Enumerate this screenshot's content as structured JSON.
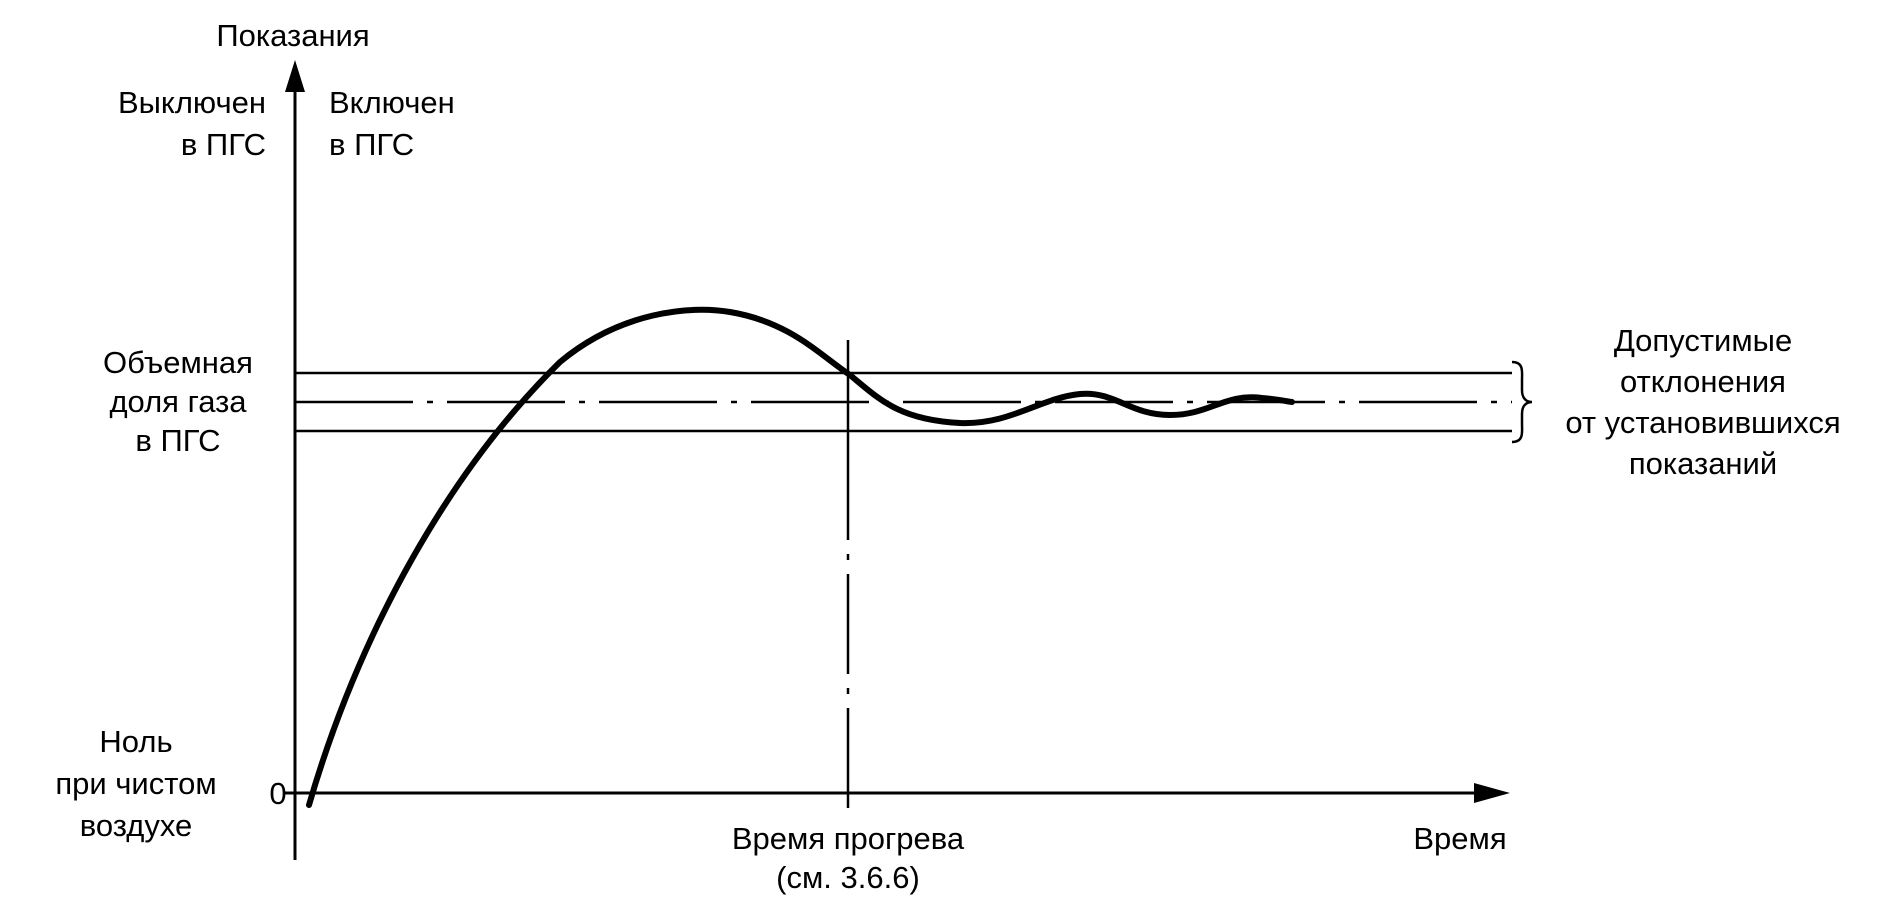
{
  "diagram": {
    "axes": {
      "y_label": "Показания",
      "x_label": "Время",
      "origin_label": "0"
    },
    "left_labels": {
      "off_line1": "Выключен",
      "off_line2": "в ПГС",
      "on_line1": "Включен",
      "on_line2": "в ПГС",
      "gas_line1": "Объемная",
      "gas_line2": "доля газа",
      "gas_line3": "в ПГС",
      "zero_line1": "Ноль",
      "zero_line2": "при чистом",
      "zero_line3": "воздухе"
    },
    "bottom_labels": {
      "warmup_line1": "Время прогрева",
      "warmup_line2": "(см. 3.6.6)"
    },
    "right_labels": {
      "dev_line1": "Допустимые",
      "dev_line2": "отклонения",
      "dev_line3": "от установившихся",
      "dev_line4": "показаний"
    },
    "colors": {
      "ink": "#000000",
      "background": "#ffffff"
    }
  }
}
